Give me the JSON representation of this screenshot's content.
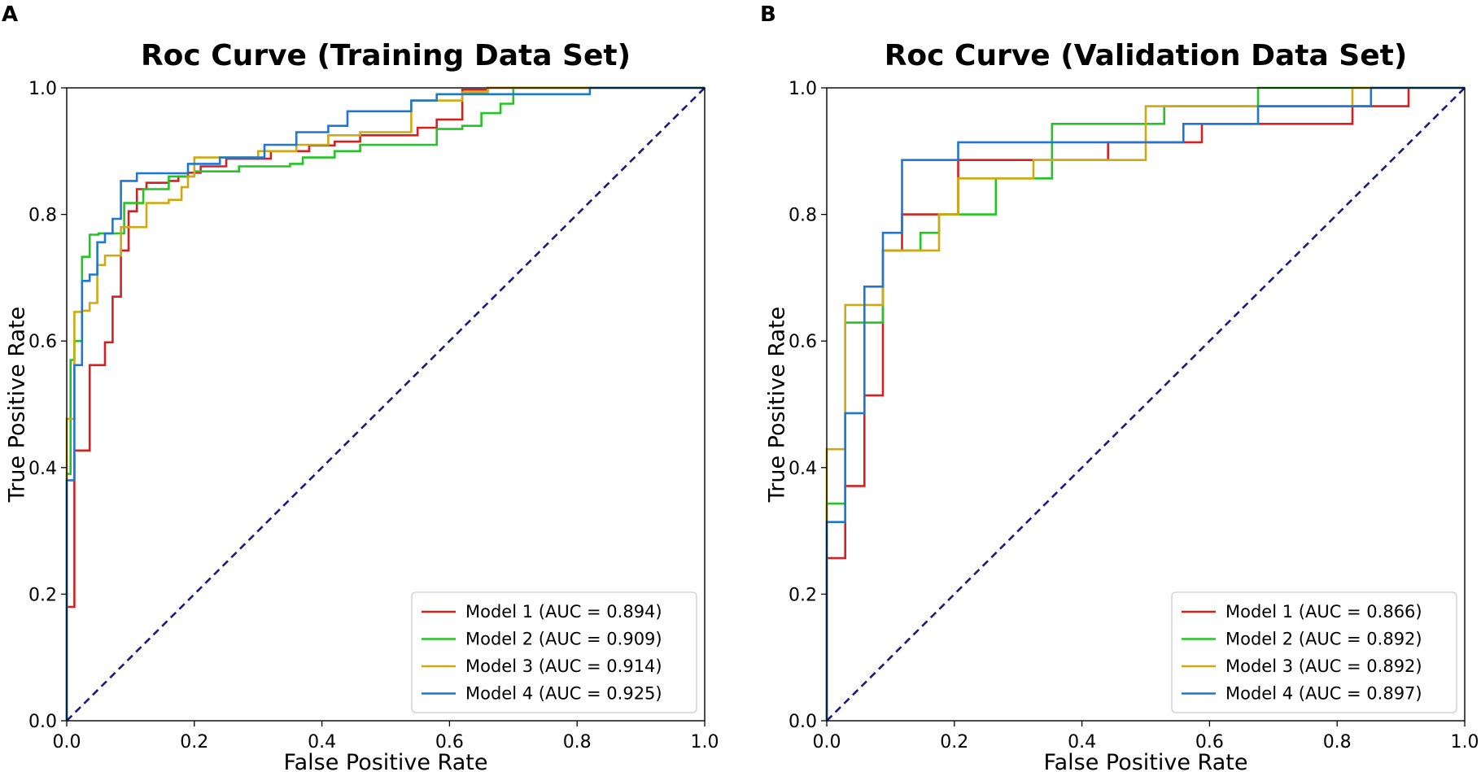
{
  "colors": {
    "model_1": "#d62020",
    "model_2": "#22c622",
    "model_3": "#cfa911",
    "model_4": "#1f77d4",
    "reference": "#1a1a80"
  },
  "chart_data": [
    {
      "type": "line",
      "panel_label": "A",
      "title": "Roc Curve (Training Data Set)",
      "xlabel": "False Positive Rate",
      "ylabel": "True Positive Rate",
      "xlim": [
        0,
        1
      ],
      "ylim": [
        0,
        1
      ],
      "xticks": [
        "0.0",
        "0.2",
        "0.4",
        "0.6",
        "0.8",
        "1.0"
      ],
      "yticks": [
        "0.0",
        "0.2",
        "0.4",
        "0.6",
        "0.8",
        "1.0"
      ],
      "legend_position": "lower right",
      "reference_line": {
        "x": [
          0,
          1
        ],
        "y": [
          0,
          1
        ],
        "style": "dashed"
      },
      "series": [
        {
          "name": "Model 1 (AUC = 0.894)",
          "color_key": "model_1",
          "x": [
            0,
            0,
            0.012,
            0.012,
            0.036,
            0.036,
            0.06,
            0.06,
            0.072,
            0.072,
            0.085,
            0.085,
            0.097,
            0.097,
            0.11,
            0.11,
            0.125,
            0.125,
            0.16,
            0.16,
            0.175,
            0.175,
            0.19,
            0.19,
            0.21,
            0.21,
            0.25,
            0.25,
            0.32,
            0.32,
            0.38,
            0.38,
            0.42,
            0.42,
            0.46,
            0.46,
            0.55,
            0.55,
            0.58,
            0.58,
            0.62,
            0.62,
            0.66,
            0.66,
            0.75,
            0.75,
            1.0
          ],
          "y": [
            0,
            0.18,
            0.18,
            0.427,
            0.427,
            0.562,
            0.562,
            0.598,
            0.598,
            0.67,
            0.67,
            0.743,
            0.743,
            0.805,
            0.805,
            0.84,
            0.84,
            0.85,
            0.85,
            0.853,
            0.853,
            0.86,
            0.86,
            0.866,
            0.866,
            0.876,
            0.876,
            0.888,
            0.888,
            0.9,
            0.9,
            0.909,
            0.909,
            0.915,
            0.915,
            0.925,
            0.925,
            0.937,
            0.937,
            0.95,
            0.95,
            0.997,
            0.997,
            1.0,
            1.0,
            1.0,
            1.0
          ]
        },
        {
          "name": "Model 2 (AUC = 0.909)",
          "color_key": "model_2",
          "x": [
            0,
            0,
            0.006,
            0.006,
            0.012,
            0.012,
            0.024,
            0.024,
            0.036,
            0.036,
            0.05,
            0.05,
            0.09,
            0.09,
            0.12,
            0.12,
            0.16,
            0.16,
            0.2,
            0.2,
            0.27,
            0.27,
            0.35,
            0.35,
            0.37,
            0.37,
            0.42,
            0.42,
            0.46,
            0.46,
            0.58,
            0.58,
            0.62,
            0.62,
            0.65,
            0.65,
            0.68,
            0.68,
            0.7,
            0.7,
            1.0
          ],
          "y": [
            0,
            0.39,
            0.39,
            0.57,
            0.57,
            0.6,
            0.6,
            0.733,
            0.733,
            0.768,
            0.768,
            0.77,
            0.77,
            0.818,
            0.818,
            0.84,
            0.84,
            0.86,
            0.86,
            0.868,
            0.868,
            0.876,
            0.876,
            0.88,
            0.88,
            0.89,
            0.89,
            0.9,
            0.9,
            0.91,
            0.91,
            0.935,
            0.935,
            0.94,
            0.94,
            0.96,
            0.96,
            0.975,
            0.975,
            1.0,
            1.0
          ]
        },
        {
          "name": "Model 3 (AUC = 0.914)",
          "color_key": "model_3",
          "x": [
            0,
            0,
            0.012,
            0.012,
            0.024,
            0.024,
            0.036,
            0.036,
            0.048,
            0.048,
            0.06,
            0.06,
            0.085,
            0.085,
            0.095,
            0.095,
            0.125,
            0.125,
            0.16,
            0.16,
            0.18,
            0.18,
            0.19,
            0.19,
            0.2,
            0.2,
            0.3,
            0.3,
            0.36,
            0.36,
            0.41,
            0.41,
            0.46,
            0.46,
            0.54,
            0.54,
            0.62,
            0.62,
            0.66,
            0.66,
            0.82,
            0.82,
            1.0
          ],
          "y": [
            0,
            0.477,
            0.477,
            0.646,
            0.646,
            0.648,
            0.648,
            0.66,
            0.66,
            0.72,
            0.72,
            0.735,
            0.735,
            0.78,
            0.78,
            0.78,
            0.78,
            0.818,
            0.818,
            0.823,
            0.823,
            0.843,
            0.843,
            0.86,
            0.86,
            0.89,
            0.89,
            0.9,
            0.9,
            0.91,
            0.91,
            0.925,
            0.925,
            0.93,
            0.93,
            0.98,
            0.98,
            0.993,
            0.993,
            1.0,
            1.0,
            1.0,
            1.0
          ]
        },
        {
          "name": "Model 4 (AUC = 0.925)",
          "color_key": "model_4",
          "x": [
            0,
            0,
            0.012,
            0.012,
            0.024,
            0.024,
            0.036,
            0.036,
            0.048,
            0.048,
            0.06,
            0.06,
            0.072,
            0.072,
            0.085,
            0.085,
            0.11,
            0.11,
            0.19,
            0.19,
            0.24,
            0.24,
            0.31,
            0.31,
            0.36,
            0.36,
            0.41,
            0.41,
            0.44,
            0.44,
            0.54,
            0.54,
            0.58,
            0.58,
            0.82,
            0.82,
            1.0
          ],
          "y": [
            0,
            0.38,
            0.38,
            0.562,
            0.562,
            0.695,
            0.695,
            0.705,
            0.705,
            0.756,
            0.756,
            0.77,
            0.77,
            0.793,
            0.793,
            0.853,
            0.853,
            0.865,
            0.865,
            0.88,
            0.88,
            0.89,
            0.89,
            0.91,
            0.91,
            0.93,
            0.93,
            0.94,
            0.94,
            0.963,
            0.963,
            0.98,
            0.98,
            0.99,
            0.99,
            1.0,
            1.0
          ]
        }
      ]
    },
    {
      "type": "line",
      "panel_label": "B",
      "title": "Roc Curve (Validation Data Set)",
      "xlabel": "False Positive Rate",
      "ylabel": "True Positive Rate",
      "xlim": [
        0,
        1
      ],
      "ylim": [
        0,
        1
      ],
      "xticks": [
        "0.0",
        "0.2",
        "0.4",
        "0.6",
        "0.8",
        "1.0"
      ],
      "yticks": [
        "0.0",
        "0.2",
        "0.4",
        "0.6",
        "0.8",
        "1.0"
      ],
      "legend_position": "lower right",
      "reference_line": {
        "x": [
          0,
          1
        ],
        "y": [
          0,
          1
        ],
        "style": "dashed"
      },
      "series": [
        {
          "name": "Model 1 (AUC = 0.866)",
          "color_key": "model_1",
          "x": [
            0,
            0,
            0.029,
            0.029,
            0.059,
            0.059,
            0.088,
            0.088,
            0.118,
            0.118,
            0.176,
            0.176,
            0.206,
            0.206,
            0.441,
            0.441,
            0.588,
            0.588,
            0.824,
            0.824,
            0.912,
            0.912,
            1.0
          ],
          "y": [
            0,
            0.257,
            0.257,
            0.371,
            0.371,
            0.514,
            0.514,
            0.743,
            0.743,
            0.8,
            0.8,
            0.8,
            0.8,
            0.886,
            0.886,
            0.914,
            0.914,
            0.943,
            0.943,
            0.971,
            0.971,
            1.0,
            1.0
          ]
        },
        {
          "name": "Model 2 (AUC = 0.892)",
          "color_key": "model_2",
          "x": [
            0,
            0,
            0.029,
            0.029,
            0.088,
            0.088,
            0.147,
            0.147,
            0.176,
            0.176,
            0.206,
            0.206,
            0.265,
            0.265,
            0.353,
            0.353,
            0.529,
            0.529,
            0.676,
            0.676,
            1.0
          ],
          "y": [
            0,
            0.343,
            0.343,
            0.629,
            0.629,
            0.743,
            0.743,
            0.771,
            0.771,
            0.8,
            0.8,
            0.8,
            0.8,
            0.857,
            0.857,
            0.943,
            0.943,
            0.971,
            0.971,
            1.0,
            1.0
          ]
        },
        {
          "name": "Model 3 (AUC = 0.892)",
          "color_key": "model_3",
          "x": [
            0,
            0,
            0.029,
            0.029,
            0.088,
            0.088,
            0.176,
            0.176,
            0.206,
            0.206,
            0.324,
            0.324,
            0.5,
            0.5,
            0.824,
            0.824,
            1.0
          ],
          "y": [
            0,
            0.429,
            0.429,
            0.657,
            0.657,
            0.743,
            0.743,
            0.8,
            0.8,
            0.857,
            0.857,
            0.886,
            0.886,
            0.971,
            0.971,
            1.0,
            1.0
          ]
        },
        {
          "name": "Model 4 (AUC = 0.897)",
          "color_key": "model_4",
          "x": [
            0,
            0,
            0.029,
            0.029,
            0.059,
            0.059,
            0.088,
            0.088,
            0.118,
            0.118,
            0.206,
            0.206,
            0.559,
            0.559,
            0.676,
            0.676,
            0.853,
            0.853,
            1.0
          ],
          "y": [
            0,
            0.314,
            0.314,
            0.486,
            0.486,
            0.686,
            0.686,
            0.771,
            0.771,
            0.886,
            0.886,
            0.914,
            0.914,
            0.943,
            0.943,
            0.971,
            0.971,
            1.0,
            1.0
          ]
        }
      ]
    }
  ]
}
